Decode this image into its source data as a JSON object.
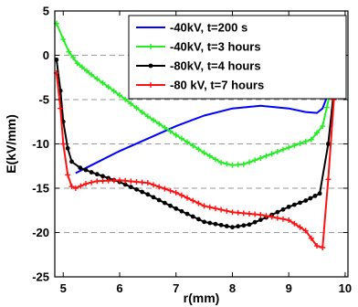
{
  "chart_data": {
    "type": "line",
    "xlabel": "r(mm)",
    "ylabel": "E(kV/mm)",
    "xlim": [
      4.85,
      10.05
    ],
    "ylim": [
      -25,
      5
    ],
    "xticks": [
      5,
      6,
      7,
      8,
      9,
      10
    ],
    "yticks": [
      5,
      0,
      -5,
      -10,
      -15,
      -20,
      -25
    ],
    "grid": "horizontal dashed",
    "legend_position": "top-right",
    "series": [
      {
        "name": "-40kV, t=200 s",
        "color": "#0000ff",
        "marker": "none",
        "points": [
          [
            5.22,
            -13.3
          ],
          [
            5.5,
            -12.4
          ],
          [
            6.0,
            -10.8
          ],
          [
            6.5,
            -9.4
          ],
          [
            7.0,
            -8.0
          ],
          [
            7.5,
            -6.8
          ],
          [
            8.0,
            -6.0
          ],
          [
            8.5,
            -5.7
          ],
          [
            9.0,
            -6.0
          ],
          [
            9.3,
            -6.4
          ],
          [
            9.5,
            -6.5
          ],
          [
            9.6,
            -6.0
          ],
          [
            9.75,
            -3.5
          ],
          [
            9.85,
            -1.5
          ],
          [
            9.95,
            -0.6
          ]
        ]
      },
      {
        "name": "-40kV, t=3 hours",
        "color": "#22ee22",
        "marker": "plus",
        "points": [
          [
            4.88,
            3.6
          ],
          [
            5.0,
            1.8
          ],
          [
            5.1,
            0.4
          ],
          [
            5.25,
            -0.9
          ],
          [
            5.5,
            -2.2
          ],
          [
            6.0,
            -4.5
          ],
          [
            6.5,
            -6.9
          ],
          [
            7.0,
            -9.0
          ],
          [
            7.5,
            -11.0
          ],
          [
            7.8,
            -12.1
          ],
          [
            8.0,
            -12.4
          ],
          [
            8.2,
            -12.3
          ],
          [
            8.5,
            -11.6
          ],
          [
            9.0,
            -10.4
          ],
          [
            9.4,
            -9.5
          ],
          [
            9.6,
            -8.0
          ],
          [
            9.75,
            -3.8
          ],
          [
            9.85,
            -1.2
          ],
          [
            9.95,
            -0.3
          ]
        ]
      },
      {
        "name": "-80kV, t=4 hours",
        "color": "#000000",
        "marker": "dot",
        "points": [
          [
            4.88,
            -0.5
          ],
          [
            4.95,
            -4.0
          ],
          [
            5.0,
            -7.5
          ],
          [
            5.08,
            -10.5
          ],
          [
            5.15,
            -12.0
          ],
          [
            5.3,
            -12.7
          ],
          [
            5.5,
            -13.2
          ],
          [
            6.0,
            -14.3
          ],
          [
            6.5,
            -15.7
          ],
          [
            7.0,
            -17.3
          ],
          [
            7.5,
            -18.8
          ],
          [
            8.0,
            -19.4
          ],
          [
            8.3,
            -19.1
          ],
          [
            8.6,
            -18.3
          ],
          [
            9.0,
            -17.1
          ],
          [
            9.3,
            -16.4
          ],
          [
            9.55,
            -15.6
          ],
          [
            9.7,
            -10.0
          ],
          [
            9.8,
            -4.0
          ],
          [
            9.9,
            -1.2
          ],
          [
            9.97,
            -0.6
          ]
        ]
      },
      {
        "name": "-80 kV, t=7 hours",
        "color": "#ff1111",
        "marker": "plus",
        "points": [
          [
            4.88,
            -2.0
          ],
          [
            4.95,
            -6.0
          ],
          [
            5.0,
            -10.0
          ],
          [
            5.08,
            -13.5
          ],
          [
            5.15,
            -14.8
          ],
          [
            5.22,
            -15.0
          ],
          [
            5.4,
            -14.5
          ],
          [
            5.6,
            -14.2
          ],
          [
            6.0,
            -14.1
          ],
          [
            6.5,
            -14.4
          ],
          [
            7.0,
            -15.5
          ],
          [
            7.5,
            -17.0
          ],
          [
            8.0,
            -17.7
          ],
          [
            8.5,
            -18.0
          ],
          [
            9.0,
            -18.6
          ],
          [
            9.3,
            -19.8
          ],
          [
            9.5,
            -21.5
          ],
          [
            9.6,
            -21.7
          ],
          [
            9.7,
            -14.0
          ],
          [
            9.8,
            -5.0
          ],
          [
            9.9,
            -1.0
          ],
          [
            9.97,
            -0.3
          ]
        ]
      }
    ]
  }
}
